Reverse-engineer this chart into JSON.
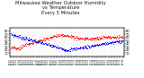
{
  "title": "Milwaukee Weather Outdoor Humidity\nvs Temperature\nEvery 5 Minutes",
  "title_fontsize": 3.8,
  "bg_color": "#ffffff",
  "red_color": "#ff0000",
  "blue_color": "#0000ff",
  "n_points": 288,
  "ylim_left": [
    0,
    90
  ],
  "ylim_right": [
    0,
    90
  ],
  "ytick_fontsize": 2.5,
  "xtick_fontsize": 1.8,
  "grid_color": "#bbbbbb",
  "marker_size": 0.4,
  "left_yticks": [
    10,
    20,
    30,
    40,
    50,
    60,
    70,
    80
  ],
  "right_yticks": [
    10,
    20,
    30,
    40,
    50,
    60,
    70,
    80
  ]
}
